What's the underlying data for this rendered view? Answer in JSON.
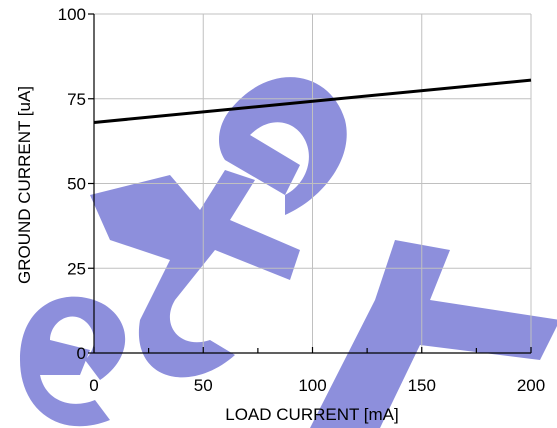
{
  "chart_data": {
    "type": "line",
    "title": "",
    "xlabel": "LOAD CURRENT [mA]",
    "ylabel": "GROUND CURRENT [uA]",
    "xlim": [
      0,
      200
    ],
    "ylim": [
      0,
      100
    ],
    "x_ticks": [
      0,
      50,
      100,
      150,
      200
    ],
    "y_ticks": [
      0,
      25,
      50,
      75,
      100
    ],
    "x_tick_labels": [
      "0",
      "50",
      "100",
      "150",
      "200"
    ],
    "y_tick_labels": [
      "0",
      "25",
      "50",
      "75",
      "100"
    ],
    "grid": true,
    "series": [
      {
        "values": [
          68,
          80.5
        ],
        "x": [
          0,
          200
        ]
      }
    ],
    "watermark": "Obsolete",
    "colors": {
      "line": "#000000",
      "grid": "#c0c0c0",
      "watermark": "#8d8fdc"
    }
  }
}
